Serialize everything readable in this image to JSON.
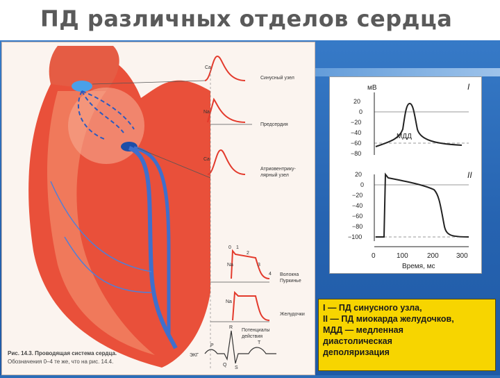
{
  "slide": {
    "title": "ПД различных отделов сердца"
  },
  "figure_left": {
    "labels": {
      "sinus_node": "Синусный узел",
      "atria": "Предсердия",
      "av_node_line1": "Атриовентрику-",
      "av_node_line2": "лярный узел",
      "purkinje_line1": "Волокна",
      "purkinje_line2": "Пуркинье",
      "ventricles": "Желудочки",
      "potential_line1": "Потенциалы",
      "potential_line2": "действия",
      "ecg": "ЭКГ"
    },
    "ion_labels": {
      "ca1": "Ca",
      "na1": "Na",
      "ca2": "Ca",
      "na2": "Na",
      "na3": "Na"
    },
    "phase_numbers": [
      "0",
      "1",
      "2",
      "3",
      "4"
    ],
    "ecg_letters": {
      "p": "P",
      "q": "Q",
      "r": "R",
      "s": "S",
      "t": "T"
    },
    "caption_line1": "Рис. 14.3. Проводящая система сердца.",
    "caption_line2": "Обозначения 0–4 те же, что на рис. 14.4."
  },
  "figure_right": {
    "y_unit": "мВ",
    "panel1_label": "I",
    "panel2_label": "II",
    "mdd_label": "МДД",
    "panel1_ticks": [
      "20",
      "0",
      "−20",
      "−40",
      "−60",
      "−80"
    ],
    "panel2_ticks": [
      "20",
      "0",
      "−20",
      "−40",
      "−60",
      "−80",
      "−100"
    ],
    "x_ticks": [
      "0",
      "100",
      "200",
      "300"
    ],
    "x_label": "Время, мс"
  },
  "legend": {
    "line1": "I — ПД синусного узла,",
    "line2": " II — ПД миокарда желудочков,",
    "line3": "МДД — медленная",
    "line4": "диастолическая",
    "line5": "деполяризация"
  }
}
